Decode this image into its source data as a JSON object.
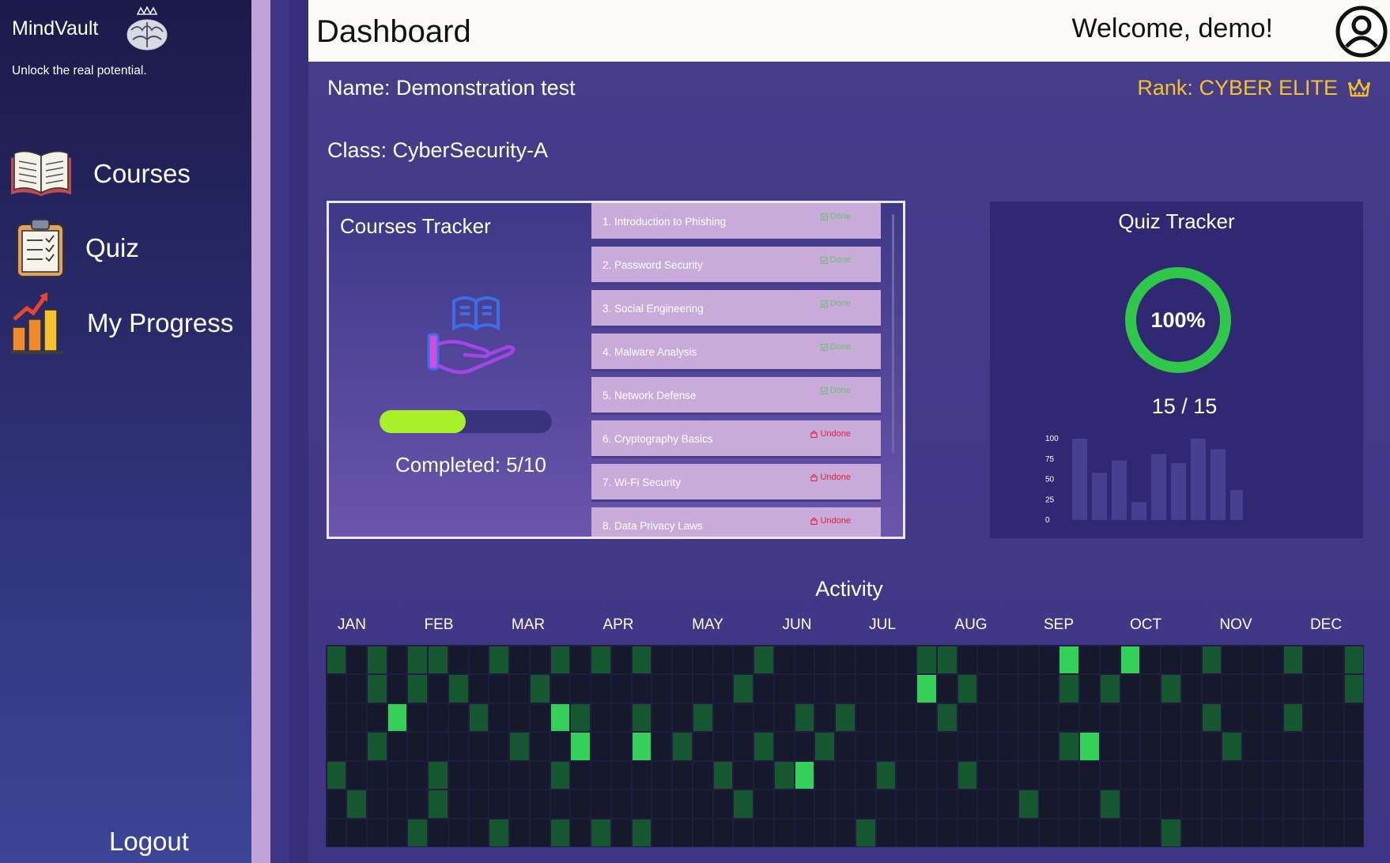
{
  "sidebar": {
    "brand": "MindVault",
    "tagline": "Unlock the real potential.",
    "items": [
      {
        "label": "Courses",
        "icon": "book-icon"
      },
      {
        "label": "Quiz",
        "icon": "clipboard-icon"
      },
      {
        "label": "My Progress",
        "icon": "bar-chart-icon"
      }
    ],
    "logout": "Logout"
  },
  "header": {
    "title": "Dashboard",
    "welcome": "Welcome, demo!"
  },
  "profile": {
    "name": "Name: Demonstration test",
    "class": "Class: CyberSecurity-A",
    "rank": "Rank: CYBER ELITE"
  },
  "courses_tracker": {
    "title": "Courses Tracker",
    "completed_label": "Completed: 5/10",
    "progress_fraction": 0.5,
    "courses": [
      {
        "name": "1. Introduction to Phishing",
        "status": "Done"
      },
      {
        "name": "2. Password Security",
        "status": "Done"
      },
      {
        "name": "3. Social Engineering",
        "status": "Done"
      },
      {
        "name": "4. Malware Analysis",
        "status": "Done"
      },
      {
        "name": "5. Network Defense",
        "status": "Done"
      },
      {
        "name": "6. Cryptography Basics",
        "status": "Undone"
      },
      {
        "name": "7. Wi-Fi Security",
        "status": "Undone"
      },
      {
        "name": "8. Data Privacy Laws",
        "status": "Undone"
      }
    ]
  },
  "quiz_tracker": {
    "title": "Quiz Tracker",
    "percent_label": "100%",
    "percent": 100,
    "score_label": "15 / 15"
  },
  "chart_data": {
    "type": "bar",
    "categories": [
      "",
      "",
      "",
      "",
      "",
      "",
      "",
      "",
      ""
    ],
    "values": [
      100,
      58,
      73,
      22,
      81,
      70,
      100,
      87,
      37
    ],
    "yticks": [
      100,
      75,
      50,
      25,
      0
    ],
    "ylim": [
      0,
      100
    ],
    "grid": false,
    "color": "#473f90"
  },
  "activity": {
    "title": "Activity",
    "months": [
      "JAN",
      "FEB",
      "MAR",
      "APR",
      "MAY",
      "JUN",
      "JUL",
      "AUG",
      "SEP",
      "OCT",
      "NOV",
      "DEC"
    ],
    "colors": {
      "empty": "#16182b",
      "low": "#165732",
      "high": "#34d058"
    },
    "weeks": [
      "1000100",
      "0000010",
      "1101000",
      "0020000",
      "1100001",
      "1000110",
      "0100000",
      "0010000",
      "1000001",
      "0001000",
      "0100000",
      "1020101",
      "0012000",
      "1000001",
      "0000000",
      "1012001",
      "0000000",
      "0001000",
      "0010000",
      "0000100",
      "0100010",
      "1001000",
      "0000100",
      "0010200",
      "0001000",
      "0010000",
      "0000001",
      "0000100",
      "0000000",
      "1200000",
      "1010000",
      "0100100",
      "0000000",
      "0000000",
      "0000010",
      "0000000",
      "2101000",
      "0002000",
      "0100010",
      "2000000",
      "0000000",
      "0100001",
      "0000000",
      "1010000",
      "0001000",
      "0000000",
      "0000000",
      "1010000",
      "0000000",
      "0000000",
      "1100000"
    ]
  }
}
